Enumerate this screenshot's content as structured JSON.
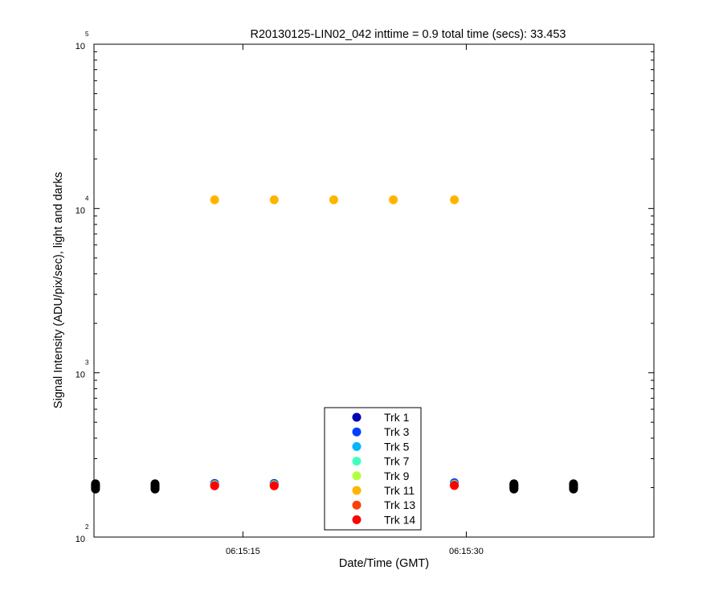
{
  "chart_data": {
    "type": "scatter",
    "title": "R20130125-LIN02_042 inttime = 0.9 total time (secs): 33.453",
    "xlabel": "Date/Time (GMT)",
    "ylabel": "Signal Intensity (ADU/pix/sec), light and darks",
    "x_scale": "time",
    "y_scale": "log",
    "xlim": [
      "06:15:05",
      "06:15:42.6"
    ],
    "ylim": [
      100,
      100000
    ],
    "x_ticks": [
      "06:15:15",
      "06:15:30"
    ],
    "y_ticks": [
      {
        "base": "10",
        "exp": "2"
      },
      {
        "base": "10",
        "exp": "3"
      },
      {
        "base": "10",
        "exp": "4"
      },
      {
        "base": "10",
        "exp": "5"
      }
    ],
    "grid": false,
    "legend_position": "bottom-center",
    "series": [
      {
        "name": "Trk 1",
        "color": "#0000b4",
        "x": [
          "06:15:13.1",
          "06:15:17.1",
          "06:15:29.2"
        ],
        "y": [
          212,
          212,
          214
        ]
      },
      {
        "name": "Trk 3",
        "color": "#0040ff",
        "x": [
          "06:15:13.1",
          "06:15:17.1",
          "06:15:29.2"
        ],
        "y": [
          211,
          211,
          213
        ]
      },
      {
        "name": "Trk 5",
        "color": "#00b4ff",
        "x": [
          "06:15:13.1",
          "06:15:17.1",
          "06:15:29.2"
        ],
        "y": [
          209,
          209,
          210
        ]
      },
      {
        "name": "Trk 7",
        "color": "#40ffbf",
        "x": [
          "06:15:13.1",
          "06:15:17.1",
          "06:15:29.2"
        ],
        "y": [
          208,
          208,
          209
        ]
      },
      {
        "name": "Trk 9",
        "color": "#b4ff40",
        "x": [
          "06:15:13.1",
          "06:15:17.1",
          "06:15:29.2"
        ],
        "y": [
          207,
          207,
          208
        ]
      },
      {
        "name": "Trk 11",
        "color": "#ffb400",
        "x": [
          "06:15:13.1",
          "06:15:17.1",
          "06:15:21.1",
          "06:15:25.1",
          "06:15:29.2"
        ],
        "y": [
          11300,
          11300,
          11300,
          11300,
          11300
        ]
      },
      {
        "name": "Trk 13",
        "color": "#ff4000",
        "x": [
          "06:15:13.1",
          "06:15:17.1",
          "06:15:29.2"
        ],
        "y": [
          206,
          206,
          207
        ]
      },
      {
        "name": "Trk 14",
        "color": "#ff0000",
        "x": [
          "06:15:13.1",
          "06:15:17.1",
          "06:15:29.2"
        ],
        "y": [
          205,
          205,
          206
        ]
      }
    ],
    "darks": {
      "color": "#000000",
      "x": [
        "06:15:05.1",
        "06:15:09.1",
        "06:15:33.2",
        "06:15:37.2"
      ],
      "y": [
        [
          196,
          199,
          202,
          205,
          208,
          211
        ],
        [
          196,
          199,
          202,
          205,
          208,
          211
        ],
        [
          196,
          199,
          202,
          205,
          208,
          211
        ],
        [
          196,
          199,
          202,
          205,
          208,
          211
        ]
      ]
    }
  }
}
